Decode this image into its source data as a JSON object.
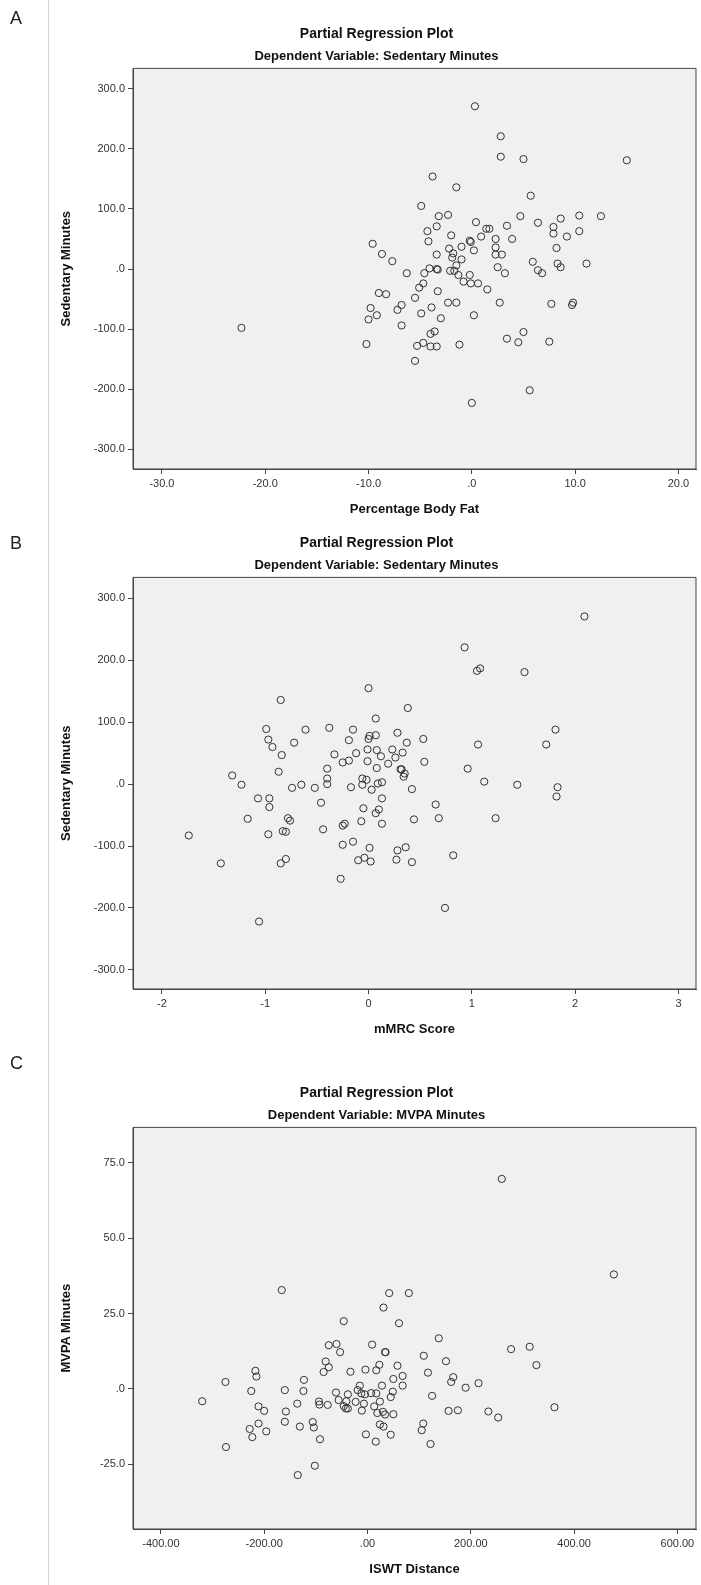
{
  "chart_data": [
    {
      "type": "scatter",
      "title": "Partial Regression Plot",
      "subtitle": "Dependent Variable: Sedentary Minutes",
      "xlabel": "Percentage Body Fat",
      "ylabel": "Sedentary Minutes",
      "annotations": [
        "A"
      ],
      "color": "#333333",
      "marker": "circle",
      "grid": false,
      "xlim": [
        -32.8,
        21.7
      ],
      "ylim": [
        -333,
        334
      ],
      "xticks": [
        {
          "value": -30,
          "label": "-30.0"
        },
        {
          "value": -20,
          "label": "-20.0"
        },
        {
          "value": -10,
          "label": "-10.0"
        },
        {
          "value": 0,
          "label": ".0"
        },
        {
          "value": 10,
          "label": "10.0"
        },
        {
          "value": 20,
          "label": "20.0"
        }
      ],
      "yticks": [
        {
          "value": -300,
          "label": "-300.0"
        },
        {
          "value": -200,
          "label": "-200.0"
        },
        {
          "value": -100,
          "label": "-100.0"
        },
        {
          "value": 0,
          "label": ".0"
        },
        {
          "value": 100,
          "label": "100.0"
        },
        {
          "value": 200,
          "label": "200.0"
        },
        {
          "value": 300,
          "label": "300.0"
        }
      ],
      "x": [
        0.3,
        2.8,
        2.8,
        5.0,
        15.0,
        -3.8,
        -1.5,
        5.7,
        -4.9,
        -3.2,
        -2.3,
        0.4,
        3.4,
        4.7,
        6.4,
        8.6,
        10.4,
        12.5,
        7.9,
        7.9,
        10.4,
        9.2,
        -4.3,
        -3.4,
        -2.0,
        1.4,
        1.7,
        0.9,
        -0.2,
        -0.1,
        2.3,
        3.9,
        -4.2,
        -9.6,
        -8.7,
        -7.7,
        -3.4,
        -2.2,
        -1.8,
        -1.0,
        -1.9,
        -1.0,
        -1.5,
        0.2,
        2.3,
        2.3,
        2.9,
        2.5,
        3.2,
        8.2,
        5.9,
        8.3,
        8.6,
        11.1,
        6.4,
        6.8,
        -6.3,
        -4.6,
        -4.1,
        -3.4,
        -3.3,
        -2.1,
        -1.7,
        -1.3,
        -0.8,
        -0.2,
        -0.1,
        0.6,
        1.5,
        -4.7,
        -5.1,
        -5.5,
        -9.0,
        -8.3,
        -6.8,
        -7.2,
        -9.8,
        -10.0,
        -9.2,
        -6.8,
        -4.9,
        -3.9,
        -3.0,
        -3.3,
        -2.3,
        -1.5,
        0.2,
        2.7,
        7.7,
        9.7,
        9.8,
        -10.2,
        -22.3,
        -5.3,
        -4.7,
        -4.0,
        -3.4,
        -4.0,
        -3.6,
        -5.5,
        -1.2,
        3.4,
        4.5,
        5.0,
        7.5,
        5.6,
        0.0
      ],
      "values": [
        271,
        221,
        187,
        183,
        181,
        154,
        136,
        122,
        105,
        88,
        90,
        78,
        72,
        88,
        77,
        84,
        89,
        88,
        70,
        59,
        63,
        54,
        63,
        71,
        56,
        67,
        67,
        54,
        47,
        45,
        50,
        50,
        46,
        42,
        25,
        13,
        24,
        34,
        26,
        37,
        19,
        16,
        6,
        31,
        36,
        24,
        24,
        3,
        -7,
        35,
        12,
        9,
        3,
        9,
        -2,
        -7,
        -7,
        -7,
        1,
        0,
        -1,
        -3,
        -3,
        -10,
        -21,
        -10,
        -24,
        -24,
        -34,
        -24,
        -31,
        -48,
        -40,
        -42,
        -60,
        -68,
        -65,
        -84,
        -77,
        -94,
        -74,
        -64,
        -82,
        -37,
        -56,
        -56,
        -77,
        -56,
        -58,
        -60,
        -56,
        -125,
        -98,
        -128,
        -123,
        -129,
        -129,
        -108,
        -104,
        -153,
        -126,
        -116,
        -122,
        -105,
        -121,
        -202,
        -223
      ]
    },
    {
      "type": "scatter",
      "title": "Partial Regression Plot",
      "subtitle": "Dependent Variable: Sedentary Minutes",
      "xlabel": "mMRC Score",
      "ylabel": "Sedentary Minutes",
      "annotations": [
        "B"
      ],
      "color": "#333333",
      "marker": "circle",
      "grid": false,
      "xlim": [
        -2.28,
        3.17
      ],
      "ylim": [
        -331,
        334
      ],
      "xticks": [
        -2,
        -1,
        0,
        1,
        2,
        3
      ],
      "yticks": [
        {
          "value": -300,
          "label": "-300.0"
        },
        {
          "value": -200,
          "label": "-200.0"
        },
        {
          "value": -100,
          "label": "-100.0"
        },
        {
          "value": 0,
          "label": ".0"
        },
        {
          "value": 100,
          "label": "100.0"
        },
        {
          "value": 200,
          "label": "200.0"
        },
        {
          "value": 300,
          "label": "300.0"
        }
      ],
      "x": [
        2.09,
        0.93,
        1.05,
        1.08,
        1.51,
        0.0,
        -0.85,
        0.38,
        0.07,
        -0.99,
        -0.61,
        -0.38,
        -0.15,
        -0.97,
        -0.72,
        -0.93,
        -0.84,
        -0.87,
        -1.32,
        -1.23,
        -0.19,
        0.0,
        0.01,
        0.07,
        0.28,
        0.37,
        0.53,
        -0.33,
        -0.12,
        -0.01,
        0.08,
        0.23,
        0.12,
        0.26,
        0.33,
        -0.25,
        -0.19,
        -0.01,
        0.19,
        0.08,
        0.54,
        -0.4,
        -0.4,
        -0.4,
        -0.06,
        -0.02,
        0.09,
        0.13,
        0.31,
        0.32,
        0.35,
        0.34,
        1.06,
        1.72,
        1.81,
        0.96,
        1.12,
        1.44,
        1.83,
        1.82,
        -0.65,
        -0.74,
        -0.52,
        -0.17,
        -0.06,
        0.03,
        0.42,
        -1.07,
        -0.96,
        -0.96,
        -0.46,
        0.13,
        -0.05,
        0.1,
        0.07,
        -1.17,
        -0.78,
        -0.76,
        0.65,
        0.68,
        1.23,
        0.44,
        -0.07,
        0.13,
        -0.25,
        -0.23,
        -0.44,
        -0.83,
        -0.8,
        -0.97,
        -1.74,
        -0.25,
        -0.15,
        0.01,
        0.28,
        0.36,
        0.82,
        -1.43,
        -0.85,
        -0.8,
        -0.1,
        -0.04,
        0.02,
        0.27,
        0.42,
        -0.27,
        0.74,
        -1.06
      ],
      "values": [
        271,
        221,
        183,
        187,
        181,
        155,
        136,
        123,
        106,
        89,
        88,
        91,
        88,
        72,
        67,
        60,
        47,
        20,
        14,
        -1,
        71,
        73,
        78,
        79,
        83,
        67,
        73,
        48,
        50,
        56,
        55,
        56,
        45,
        43,
        51,
        35,
        38,
        37,
        33,
        26,
        36,
        25,
        9,
        0,
        9,
        7,
        1,
        3,
        24,
        24,
        17,
        12,
        64,
        64,
        88,
        25,
        4,
        -1,
        -5,
        -20,
        -1,
        -6,
        -6,
        -5,
        -1,
        -9,
        -8,
        -23,
        -23,
        -37,
        -30,
        -23,
        -39,
        -41,
        -47,
        -56,
        -55,
        -59,
        -33,
        -55,
        -55,
        -57,
        -60,
        -64,
        -67,
        -64,
        -73,
        -76,
        -77,
        -81,
        -83,
        -98,
        -93,
        -103,
        -107,
        -102,
        -115,
        -128,
        -128,
        -121,
        -123,
        -119,
        -125,
        -122,
        -126,
        -153,
        -200,
        -222
      ]
    },
    {
      "type": "scatter",
      "title": "Partial Regression Plot",
      "subtitle": "Dependent Variable: MVPA Minutes",
      "xlabel": "ISWT Distance",
      "ylabel": "MVPA Minutes",
      "annotations": [
        "C"
      ],
      "color": "#333333",
      "marker": "circle",
      "grid": false,
      "xlim": [
        -454,
        636
      ],
      "ylim": [
        -46.5,
        86.8
      ],
      "xticks": [
        {
          "value": -400,
          "label": "-400.00"
        },
        {
          "value": -200,
          "label": "-200.00"
        },
        {
          "value": 0,
          "label": ".00"
        },
        {
          "value": 200,
          "label": "200.00"
        },
        {
          "value": 400,
          "label": "400.00"
        },
        {
          "value": 600,
          "label": "600.00"
        }
      ],
      "yticks": [
        {
          "value": -25,
          "label": "-25.0"
        },
        {
          "value": 0,
          "label": ".0"
        },
        {
          "value": 25,
          "label": "25.0"
        },
        {
          "value": 50,
          "label": "50.0"
        },
        {
          "value": 75,
          "label": "75.0"
        }
      ],
      "x": [
        260,
        477,
        -166,
        42,
        80,
        31,
        -46,
        61,
        138,
        -75,
        -60,
        9,
        -53,
        34,
        35,
        109,
        278,
        314,
        327,
        152,
        -81,
        -75,
        -85,
        -33,
        -4,
        17,
        23,
        58,
        117,
        -217,
        -215,
        -275,
        -123,
        50,
        68,
        166,
        162,
        190,
        215,
        28,
        68,
        -15,
        -225,
        -160,
        -124,
        -61,
        -38,
        -19,
        -12,
        -5,
        7,
        17,
        49,
        -320,
        -136,
        -94,
        -93,
        -77,
        -56,
        -41,
        -46,
        -42,
        -38,
        -23,
        -7,
        13,
        24,
        45,
        -211,
        -200,
        -158,
        -11,
        19,
        30,
        34,
        50,
        157,
        175,
        125,
        234,
        253,
        362,
        -228,
        -223,
        -211,
        -196,
        -160,
        -131,
        -106,
        -104,
        -92,
        -3,
        16,
        24,
        31,
        45,
        108,
        105,
        122,
        -274,
        -102,
        -135
      ],
      "values": [
        69.7,
        38.0,
        32.8,
        31.8,
        31.8,
        27.0,
        22.5,
        21.8,
        16.8,
        14.5,
        14.9,
        14.7,
        12.2,
        12.2,
        12.2,
        11.0,
        13.2,
        14.0,
        7.9,
        9.2,
        9.1,
        7.2,
        5.6,
        5.7,
        6.4,
        6.2,
        8.0,
        7.7,
        5.4,
        6.0,
        4.1,
        2.3,
        3.0,
        3.3,
        4.3,
        3.9,
        2.3,
        0.4,
        1.9,
        1.1,
        1.1,
        1.1,
        -0.7,
        -0.4,
        -0.7,
        -1.2,
        -1.8,
        -0.4,
        -1.5,
        -1.8,
        -1.4,
        -1.5,
        -0.9,
        -4.1,
        -4.9,
        -4.2,
        -5.2,
        -5.3,
        -3.7,
        -4.1,
        -5.7,
        -6.5,
        -6.5,
        -4.3,
        -4.9,
        -5.8,
        -4.2,
        -2.7,
        -5.8,
        -7.3,
        -7.5,
        -7.2,
        -8.0,
        -7.6,
        -8.5,
        -8.4,
        -7.3,
        -7.1,
        -2.3,
        -7.5,
        -9.5,
        -6.1,
        -13.3,
        -16.0,
        -11.5,
        -14.1,
        -10.9,
        -12.5,
        -11.0,
        -12.8,
        -16.7,
        -15.1,
        -17.5,
        -11.8,
        -12.5,
        -15.2,
        -11.5,
        -13.7,
        -18.3,
        -19.3,
        -25.5,
        -28.6
      ]
    }
  ]
}
